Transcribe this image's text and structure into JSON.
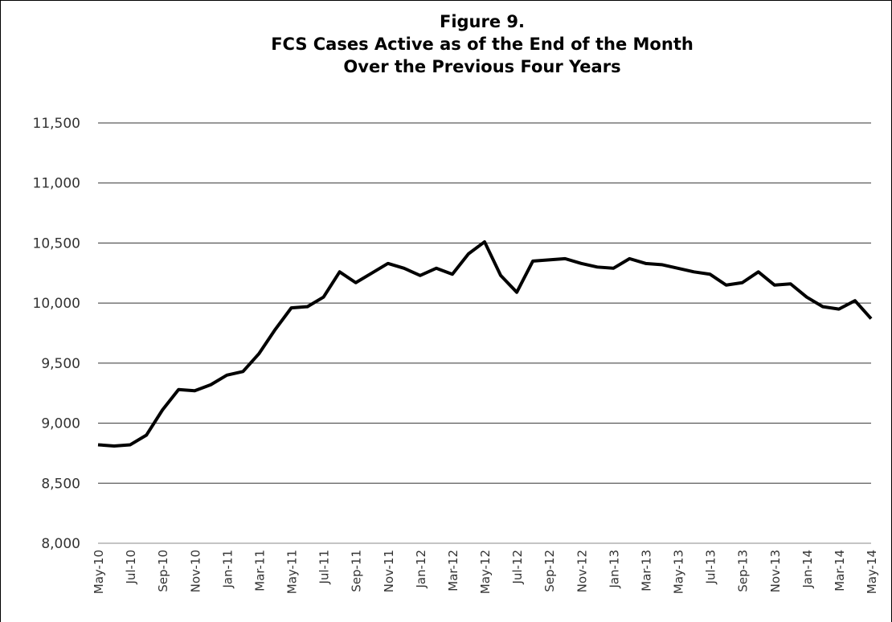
{
  "chart_data": {
    "type": "line",
    "title": [
      "Figure 9.",
      "FCS Cases Active as of the End of the Month",
      "Over the Previous Four Years"
    ],
    "categories": [
      "May-10",
      null,
      "Jul-10",
      null,
      "Sep-10",
      null,
      "Nov-10",
      null,
      "Jan-11",
      null,
      "Mar-11",
      null,
      "May-11",
      null,
      "Jul-11",
      null,
      "Sep-11",
      null,
      "Nov-11",
      null,
      "Jan-12",
      null,
      "Mar-12",
      null,
      "May-12",
      null,
      "Jul-12",
      null,
      "Sep-12",
      null,
      "Nov-12",
      null,
      "Jan-13",
      null,
      "Mar-13",
      null,
      "May-13",
      null,
      "Jul-13",
      null,
      "Sep-13",
      null,
      "Nov-13",
      null,
      "Jan-14",
      null,
      "Mar-14",
      null,
      "May-14"
    ],
    "values": [
      8820,
      8810,
      8820,
      8900,
      9110,
      9280,
      9270,
      9320,
      9400,
      9430,
      9580,
      9780,
      9960,
      9970,
      10050,
      10260,
      10170,
      10250,
      10330,
      10290,
      10230,
      10290,
      10240,
      10410,
      10510,
      10230,
      10090,
      10350,
      10360,
      10370,
      10330,
      10300,
      10290,
      10370,
      10330,
      10320,
      10290,
      10260,
      10240,
      10150,
      10170,
      10260,
      10150,
      10160,
      10050,
      9970,
      9950,
      10020,
      9870
    ],
    "color": "#000000",
    "ylim": [
      8000,
      11500
    ],
    "yticks": [
      {
        "value": 8000,
        "label": "8,000"
      },
      {
        "value": 8500,
        "label": "8,500"
      },
      {
        "value": 9000,
        "label": "9,000"
      },
      {
        "value": 9500,
        "label": "9,500"
      },
      {
        "value": 10000,
        "label": "10,000"
      },
      {
        "value": 10500,
        "label": "10,500"
      },
      {
        "value": 11000,
        "label": "11,000"
      },
      {
        "value": 11500,
        "label": "11,500"
      }
    ],
    "grid": true
  }
}
